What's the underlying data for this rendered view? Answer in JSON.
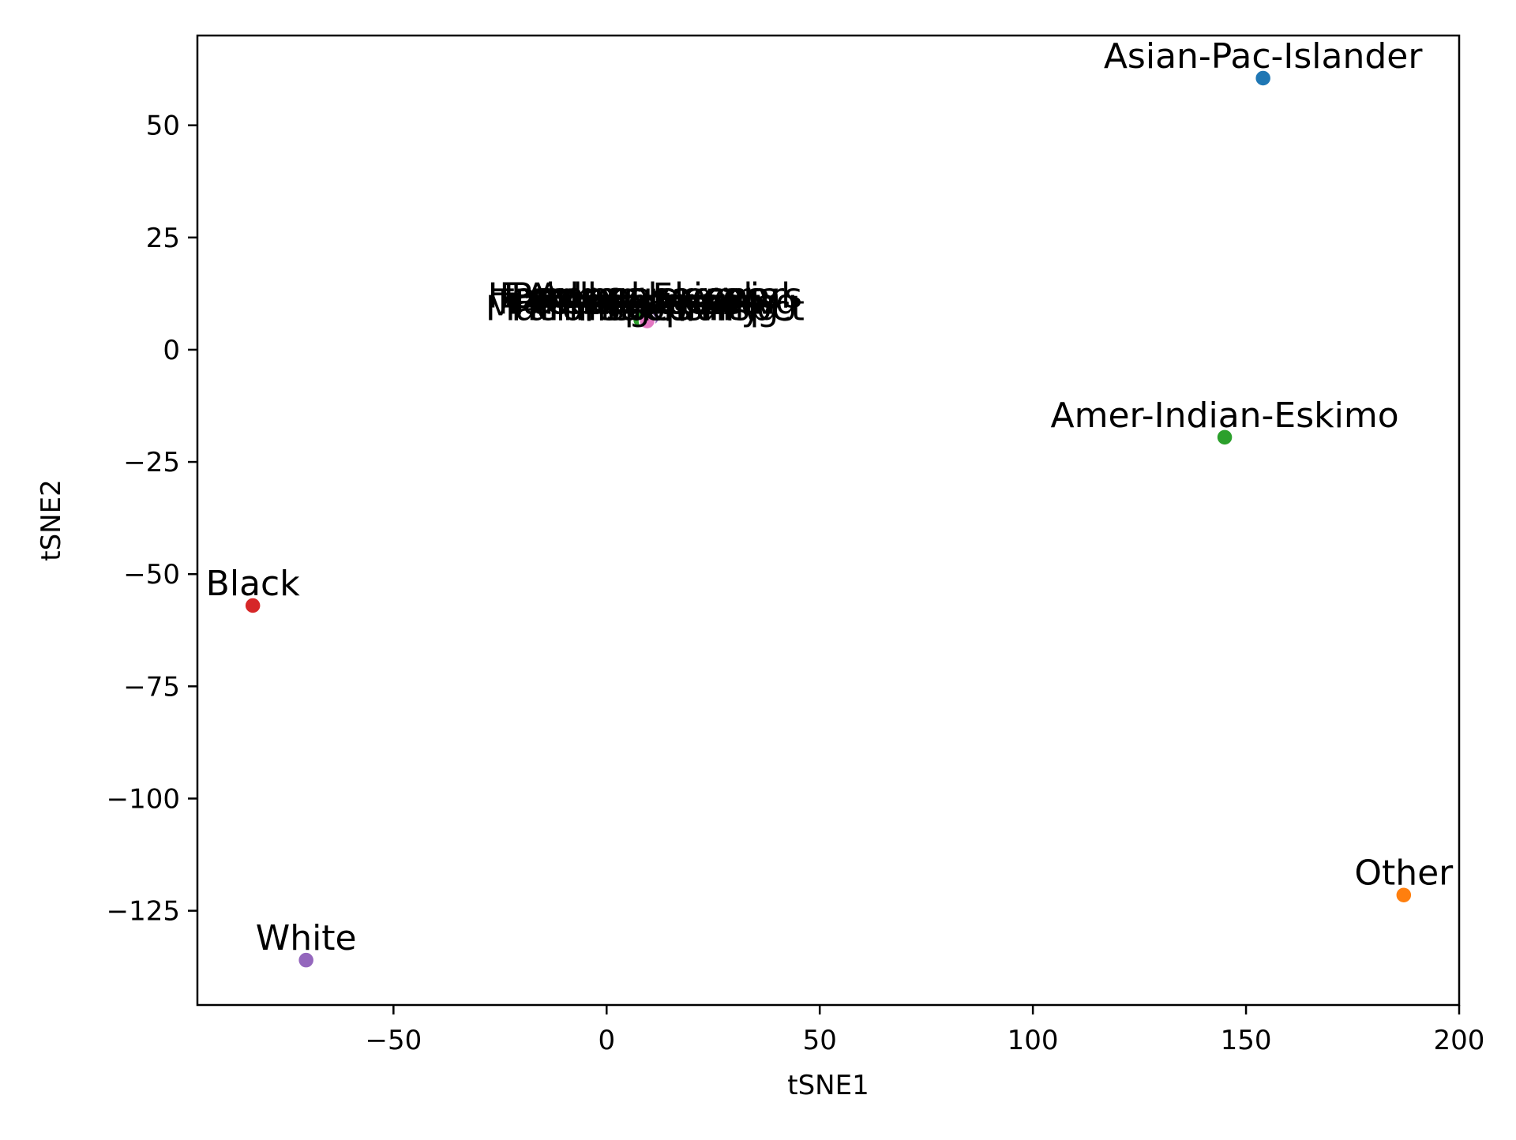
{
  "chart_data": {
    "type": "scatter",
    "title": "",
    "xlabel": "tSNE1",
    "ylabel": "tSNE2",
    "xlim": [
      -96,
      200
    ],
    "ylim": [
      -146,
      70
    ],
    "grid": false,
    "legend": "none",
    "x_ticks": [
      -50,
      0,
      50,
      100,
      150,
      200
    ],
    "x_tick_labels": [
      "−50",
      "0",
      "50",
      "100",
      "150",
      "200"
    ],
    "y_ticks": [
      50,
      25,
      0,
      -25,
      -50,
      -75,
      -100,
      -125
    ],
    "y_tick_labels": [
      "50",
      "25",
      "0",
      "−25",
      "−50",
      "−75",
      "−100",
      "−125"
    ],
    "points": [
      {
        "label": "Asian-Pac-Islander",
        "x": 154,
        "y": 60.5,
        "color": "#1f77b4"
      },
      {
        "label": "Other",
        "x": 187,
        "y": -121.5,
        "color": "#ff7f0e"
      },
      {
        "label": "Amer-Indian-Eskimo",
        "x": 145,
        "y": -19.5,
        "color": "#2ca02c"
      },
      {
        "label": "Black",
        "x": -83,
        "y": -57,
        "color": "#d62728"
      },
      {
        "label": "White",
        "x": -70.5,
        "y": -136,
        "color": "#9467bd"
      }
    ],
    "cluster": {
      "overlapping_text": [
        "Handlers-cleaners",
        "Tech-support",
        "Machine-op-inspct",
        "Priv-house-serv",
        "Transport-moving",
        "Prof-specialty",
        "Exec-managerial",
        "Protective-serv",
        "Farming-fishing",
        "Adm-clerical",
        "Craft-repair",
        "Sales",
        "Armed-Forces",
        "Other-service"
      ],
      "points": [
        {
          "x": 8.5,
          "y": 7.5,
          "color": "#e377c2"
        },
        {
          "x": 10.5,
          "y": 7.2,
          "color": "#9467bd"
        },
        {
          "x": 9,
          "y": 6.6,
          "color": "#bcbd22"
        },
        {
          "x": 9.5,
          "y": 6.5,
          "color": "#17becf"
        },
        {
          "x": 8,
          "y": 6.7,
          "color": "#2ca02c"
        },
        {
          "x": 9.5,
          "y": 6.4,
          "color": "#e377c2"
        }
      ]
    }
  }
}
